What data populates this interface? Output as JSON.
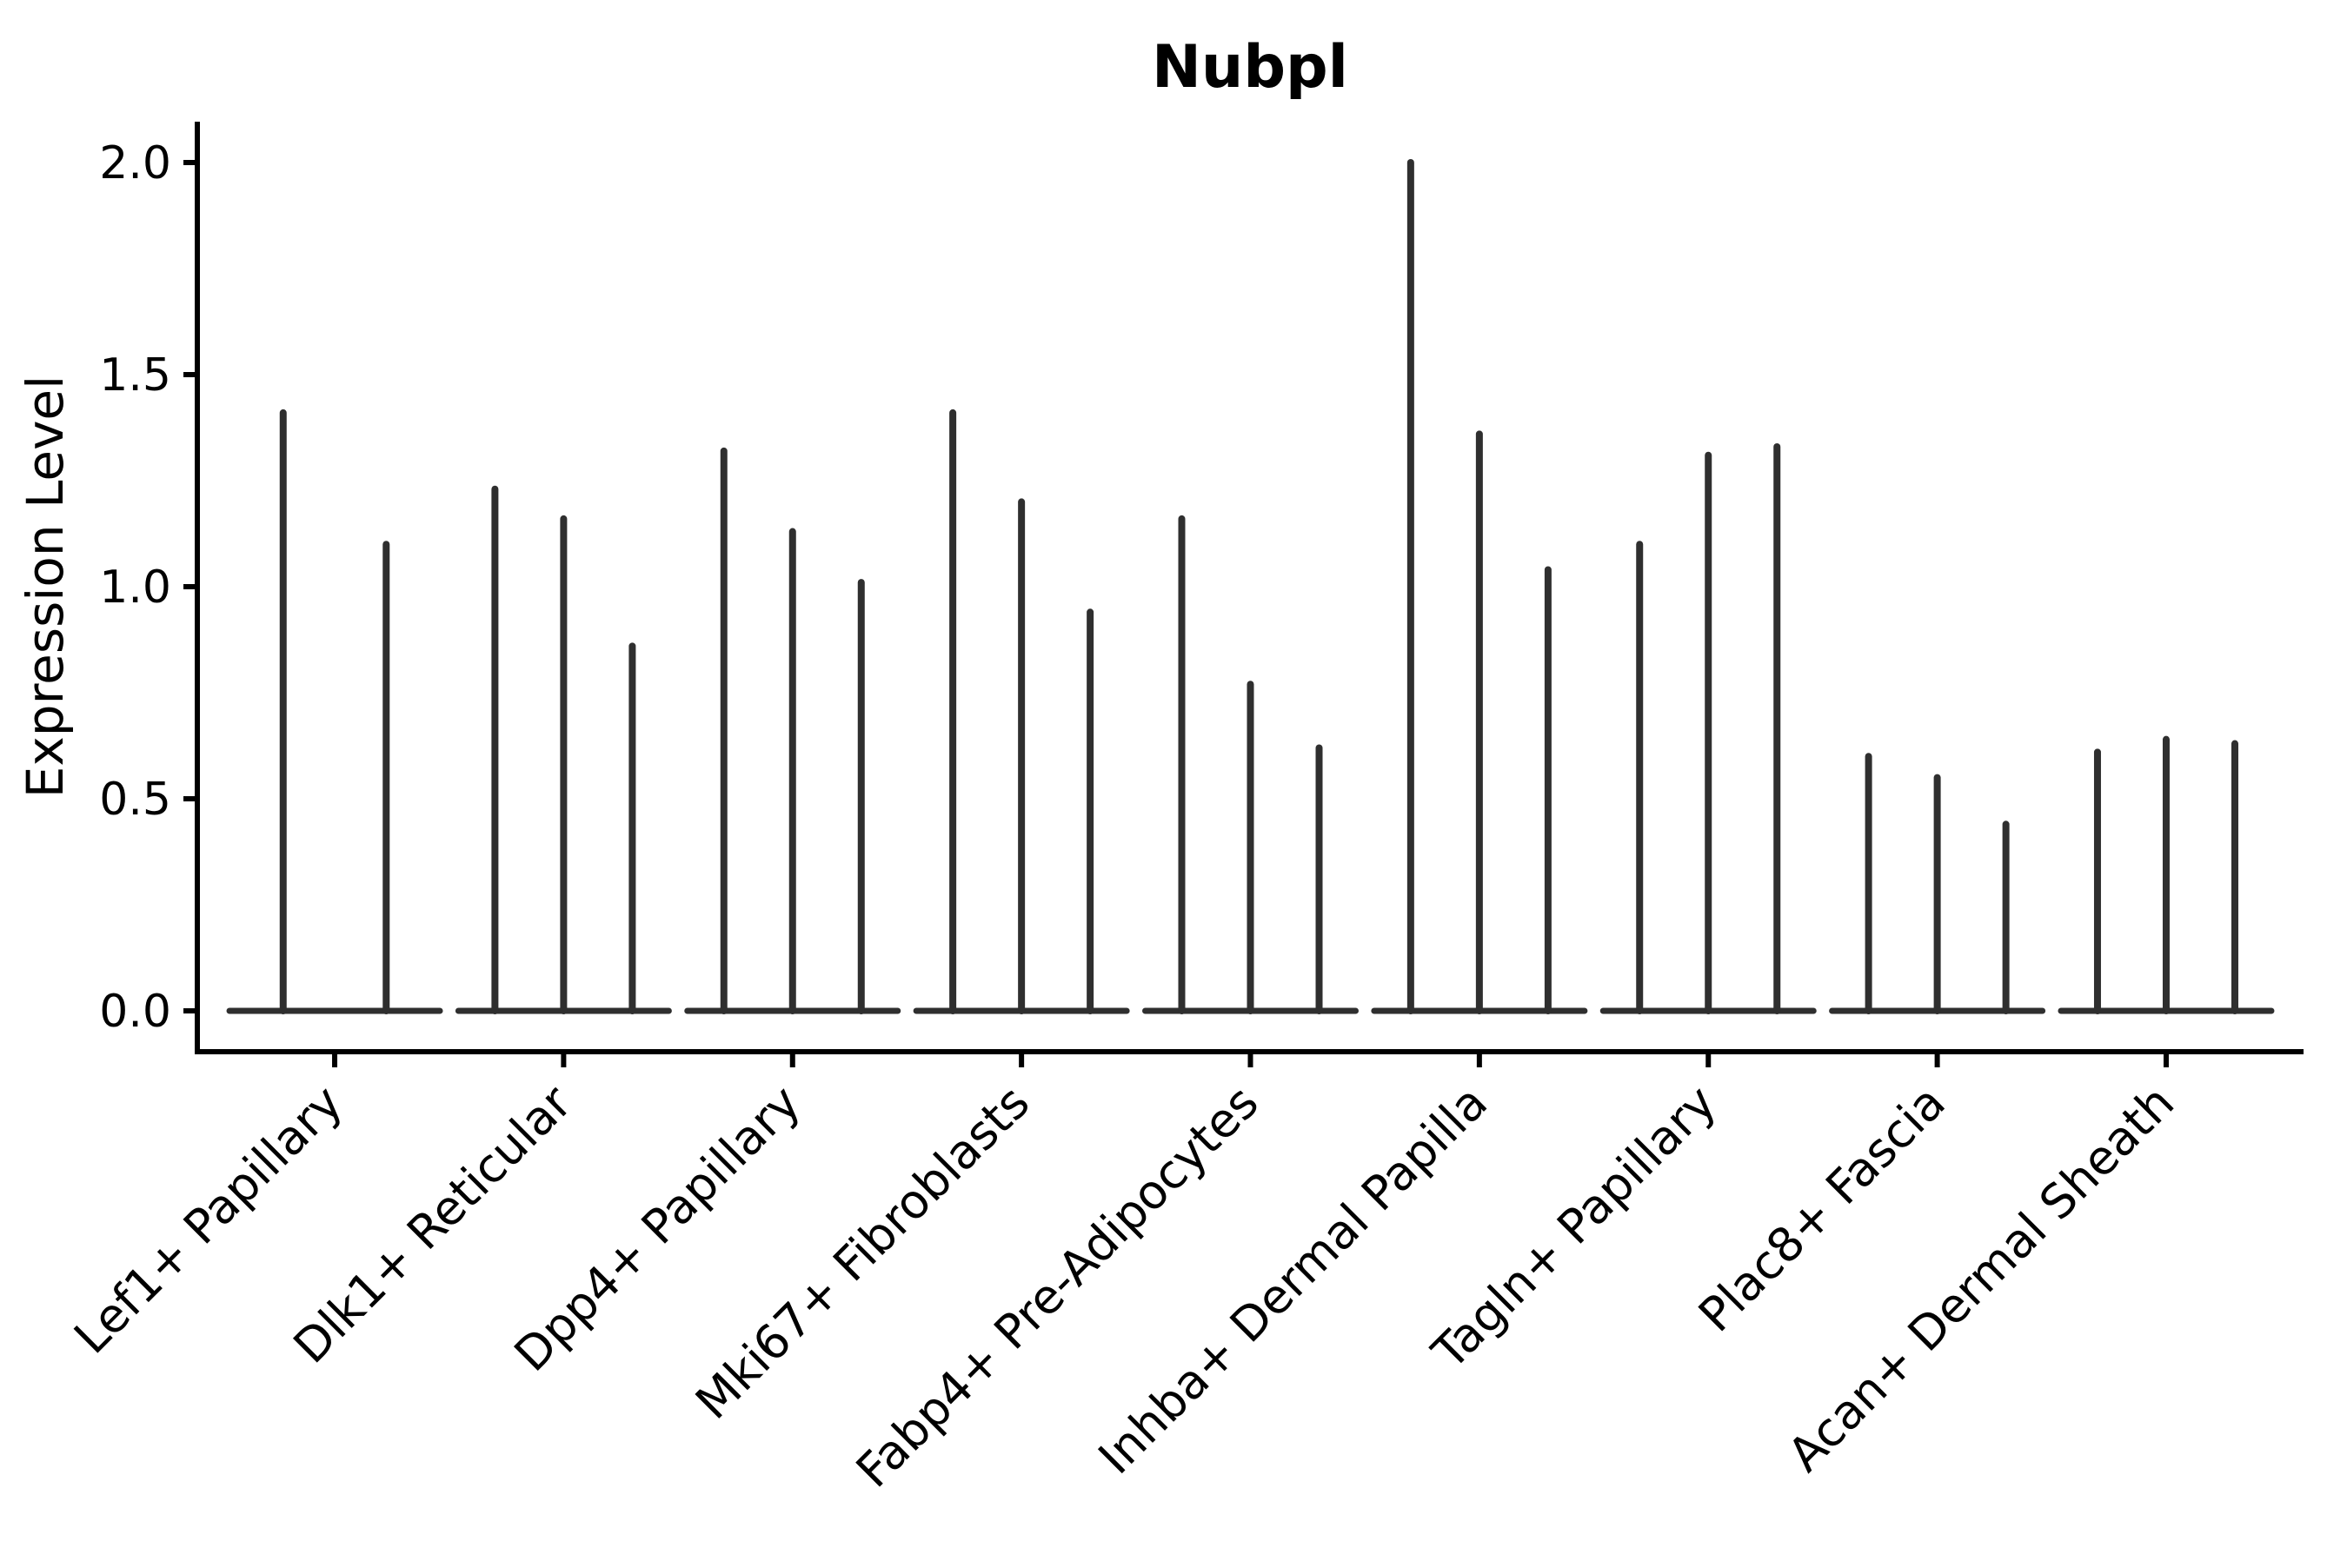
{
  "chart_data": {
    "type": "violin",
    "title": "Nubpl",
    "ylabel": "Expression Level",
    "xlabel": "",
    "ylim": [
      -0.1,
      2.1
    ],
    "xlim": [
      0.4,
      9.6
    ],
    "grid": false,
    "legend": "none",
    "yticks": [
      {
        "value": 0.0,
        "label": "0.0"
      },
      {
        "value": 0.5,
        "label": "0.5"
      },
      {
        "value": 1.0,
        "label": "1.0"
      },
      {
        "value": 1.5,
        "label": "1.5"
      },
      {
        "value": 2.0,
        "label": "2.0"
      }
    ],
    "categories": [
      "Lef1+ Papillary",
      "Dlk1+ Reticular",
      "Dpp4+ Papillary",
      "Mki67+ Fibroblasts",
      "Fabp4+ Pre-Adipocytes",
      "Inhba+ Dermal Papilla",
      "Tagln+ Papillary",
      "Plac8+ Fascia",
      "Acan+ Dermal Sheath"
    ],
    "groups": [
      {
        "category": "Lef1+ Papillary",
        "center": 1,
        "violins": [
          {
            "offset": -0.225,
            "max": 1.41
          },
          {
            "offset": 0.225,
            "max": 1.1
          }
        ]
      },
      {
        "category": "Dlk1+ Reticular",
        "center": 2,
        "violins": [
          {
            "offset": -0.3,
            "max": 1.23
          },
          {
            "offset": 0.0,
            "max": 1.16
          },
          {
            "offset": 0.3,
            "max": 0.86
          }
        ]
      },
      {
        "category": "Dpp4+ Papillary",
        "center": 3,
        "violins": [
          {
            "offset": -0.3,
            "max": 1.32
          },
          {
            "offset": 0.0,
            "max": 1.13
          },
          {
            "offset": 0.3,
            "max": 1.01
          }
        ]
      },
      {
        "category": "Mki67+ Fibroblasts",
        "center": 4,
        "violins": [
          {
            "offset": -0.3,
            "max": 1.41
          },
          {
            "offset": 0.0,
            "max": 1.2
          },
          {
            "offset": 0.3,
            "max": 0.94
          }
        ]
      },
      {
        "category": "Fabp4+ Pre-Adipocytes",
        "center": 5,
        "violins": [
          {
            "offset": -0.3,
            "max": 1.16
          },
          {
            "offset": 0.0,
            "max": 0.77
          },
          {
            "offset": 0.3,
            "max": 0.62
          }
        ]
      },
      {
        "category": "Inhba+ Dermal Papilla",
        "center": 6,
        "violins": [
          {
            "offset": -0.3,
            "max": 2.0
          },
          {
            "offset": 0.0,
            "max": 1.36
          },
          {
            "offset": 0.3,
            "max": 1.04
          }
        ]
      },
      {
        "category": "Tagln+ Papillary",
        "center": 7,
        "violins": [
          {
            "offset": -0.3,
            "max": 1.1
          },
          {
            "offset": 0.0,
            "max": 1.31
          },
          {
            "offset": 0.3,
            "max": 1.33
          }
        ]
      },
      {
        "category": "Plac8+ Fascia",
        "center": 8,
        "violins": [
          {
            "offset": -0.3,
            "max": 0.6
          },
          {
            "offset": 0.0,
            "max": 0.55
          },
          {
            "offset": 0.3,
            "max": 0.44
          }
        ]
      },
      {
        "category": "Acan+ Dermal Sheath",
        "center": 9,
        "violins": [
          {
            "offset": -0.3,
            "max": 0.61
          },
          {
            "offset": 0.0,
            "max": 0.64
          },
          {
            "offset": 0.3,
            "max": 0.63
          }
        ]
      }
    ],
    "colors": {
      "violin": "#2f2f2f",
      "axis": "#000000",
      "text": "#000000",
      "background": "#ffffff"
    }
  }
}
